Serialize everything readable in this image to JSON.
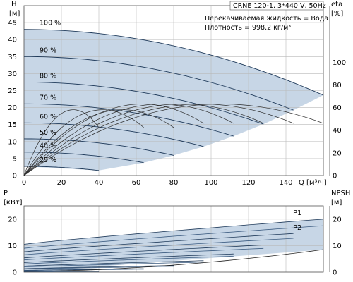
{
  "chart_data": [
    {
      "type": "line",
      "title": "CRNE 120-1, 3*440 V, 50Hz",
      "info_lines": [
        "Перекачиваемая жидкость = Вода",
        "Плотность = 998.2 кг/м³"
      ],
      "ylabel_left": [
        "H",
        "[м]"
      ],
      "ylabel_right": [
        "eta",
        "[%]"
      ],
      "xlabel": "Q [м³/ч]",
      "xlim": [
        0,
        160
      ],
      "ylim": [
        0,
        50
      ],
      "eta_ylim": [
        0,
        150
      ],
      "x_ticks": [
        0,
        20,
        40,
        60,
        80,
        100,
        120,
        140
      ],
      "y_ticks": [
        0,
        5,
        10,
        15,
        20,
        25,
        30,
        35,
        40,
        45
      ],
      "eta_ticks": [
        0,
        20,
        40,
        60,
        80,
        100
      ],
      "grid": true,
      "speed_curves": [
        {
          "name": "100 %",
          "h0": 43.0,
          "qmax": 160
        },
        {
          "name": "90 %",
          "h0": 35.0,
          "qmax": 144
        },
        {
          "name": "80 %",
          "h0": 27.5,
          "qmax": 128
        },
        {
          "name": "70 %",
          "h0": 21.1,
          "qmax": 112
        },
        {
          "name": "60 %",
          "h0": 15.5,
          "qmax": 96
        },
        {
          "name": "50 %",
          "h0": 10.8,
          "qmax": 80
        },
        {
          "name": "40 %",
          "h0": 6.9,
          "qmax": 64
        },
        {
          "name": "25 %",
          "h0": 2.7,
          "qmax": 40
        }
      ],
      "eta_curve": {
        "qmax": 160,
        "eta_max": 60,
        "q_at_max": 100
      }
    },
    {
      "type": "line",
      "ylabel_left": [
        "P",
        "[кВт]"
      ],
      "ylabel_right": [
        "NPSH",
        "[м]"
      ],
      "xlim": [
        0,
        160
      ],
      "ylim": [
        0,
        25
      ],
      "y_ticks": [
        0,
        10,
        20
      ],
      "series": [
        {
          "name": "P1",
          "p0": 10.5,
          "p_end": 20.0,
          "qmax": 160
        },
        {
          "name": "P2",
          "p0": 9.0,
          "p_end": 17.5,
          "qmax": 160
        }
      ],
      "npsh_curve": {
        "qmax": 160,
        "v0": 0.3,
        "v_end": 8.5
      }
    }
  ],
  "colors": {
    "fill": "#c7d6e6",
    "curve": "#1f3a5a",
    "grid": "#b9b9b9",
    "axis": "#555555"
  }
}
